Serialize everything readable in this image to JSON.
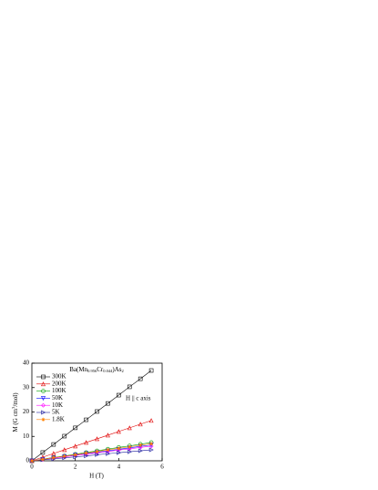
{
  "chart_data": {
    "type": "line",
    "title": [
      "Ba(Mn",
      "0.956",
      "Cr",
      "0.044",
      ")As",
      "2"
    ],
    "annotation": "H || c axis",
    "x_label": "H (T)",
    "y_label": [
      "M (G cm",
      "3",
      "/mol)"
    ],
    "x": [
      0,
      0.5,
      1,
      1.5,
      2,
      2.5,
      3,
      3.5,
      4,
      4.5,
      5,
      5.5
    ],
    "xlim": [
      0,
      6
    ],
    "xticks": [
      0,
      2,
      4,
      6
    ],
    "ylim": [
      0,
      40
    ],
    "yticks": [
      0,
      10,
      20,
      30,
      40
    ],
    "series": [
      {
        "name": "300K",
        "color": "#000000",
        "marker": "square",
        "values": [
          0,
          3.4,
          6.7,
          10.1,
          13.5,
          16.8,
          20.2,
          23.5,
          26.9,
          30.3,
          33.6,
          37.0
        ]
      },
      {
        "name": "200K",
        "color": "#e00000",
        "marker": "triangle-up",
        "values": [
          0,
          1.5,
          3.0,
          4.5,
          6.0,
          7.5,
          9.0,
          10.5,
          12.0,
          13.5,
          15.0,
          16.5
        ]
      },
      {
        "name": "100K",
        "color": "#00a000",
        "marker": "circle",
        "values": [
          0,
          0.7,
          1.4,
          2.0,
          2.7,
          3.4,
          4.1,
          4.8,
          5.5,
          6.1,
          6.8,
          7.5
        ]
      },
      {
        "name": "50K",
        "color": "#0000ff",
        "marker": "triangle-down",
        "values": [
          0,
          0.6,
          1.2,
          1.8,
          2.4,
          3.0,
          3.5,
          4.1,
          4.7,
          5.3,
          5.9,
          6.5
        ]
      },
      {
        "name": "10K",
        "color": "#ff00ff",
        "marker": "diamond",
        "values": [
          0,
          0.5,
          1.1,
          1.6,
          2.2,
          2.7,
          3.3,
          3.8,
          4.4,
          4.9,
          5.5,
          6.0
        ]
      },
      {
        "name": "5K",
        "color": "#2020a0",
        "marker": "triangle-right",
        "values": [
          0,
          0.4,
          0.8,
          1.2,
          1.6,
          2.0,
          2.5,
          2.9,
          3.3,
          3.7,
          4.1,
          4.5
        ]
      },
      {
        "name": "1.8K",
        "color": "#ff8000",
        "marker": "star",
        "values": [
          0,
          0.6,
          1.3,
          1.9,
          2.5,
          3.2,
          3.8,
          4.5,
          5.1,
          5.7,
          6.4,
          7.0
        ]
      }
    ]
  }
}
